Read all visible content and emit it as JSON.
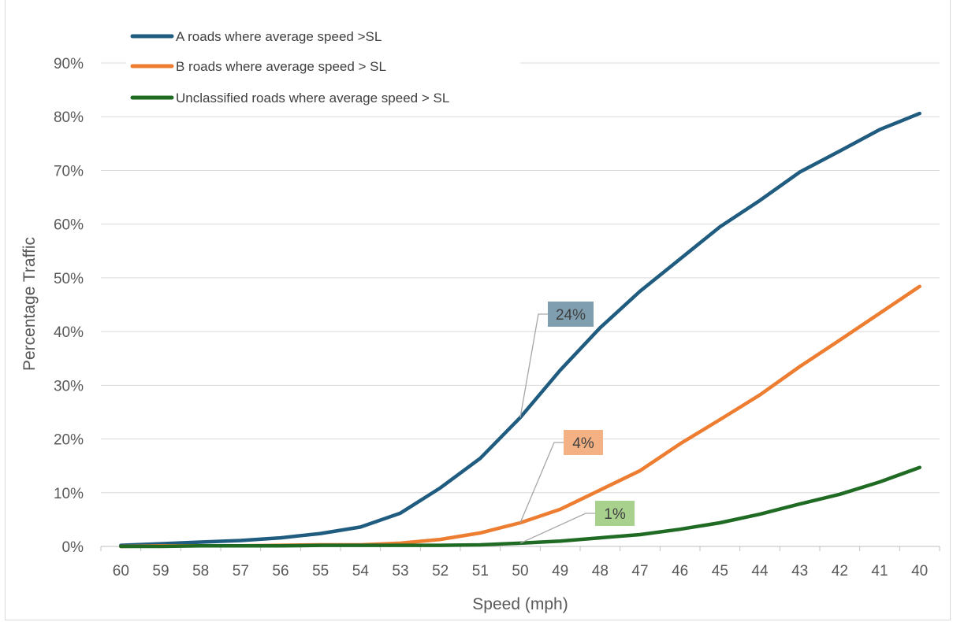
{
  "chart_data": {
    "type": "line",
    "xlabel": "Speed (mph)",
    "ylabel": "Percentage Traffic",
    "categories": [
      "60",
      "59",
      "58",
      "57",
      "56",
      "55",
      "54",
      "53",
      "52",
      "51",
      "50",
      "49",
      "48",
      "47",
      "46",
      "45",
      "44",
      "43",
      "42",
      "41",
      "40"
    ],
    "ylim": [
      0,
      90
    ],
    "yticks": [
      0,
      10,
      20,
      30,
      40,
      50,
      60,
      70,
      80,
      90
    ],
    "ytick_labels": [
      "0%",
      "10%",
      "20%",
      "30%",
      "40%",
      "50%",
      "60%",
      "70%",
      "80%",
      "90%"
    ],
    "grid": true,
    "legend_position": "top-left",
    "series": [
      {
        "name": "A roads where average speed >SL",
        "color": "#1f5c7f",
        "values": [
          0.2,
          0.5,
          0.8,
          1.1,
          1.6,
          2.4,
          3.6,
          6.2,
          10.9,
          16.4,
          24.0,
          32.8,
          40.7,
          47.5,
          53.5,
          59.5,
          64.4,
          69.7,
          73.6,
          77.6,
          80.6
        ]
      },
      {
        "name": "B roads where average speed > SL",
        "color": "#ed7d31",
        "values": [
          0.0,
          0.1,
          0.1,
          0.1,
          0.2,
          0.3,
          0.3,
          0.6,
          1.3,
          2.5,
          4.4,
          6.9,
          10.5,
          14.1,
          19.1,
          23.6,
          28.2,
          33.5,
          38.4,
          43.4,
          48.4
        ]
      },
      {
        "name": "Unclassified roads where average speed > SL",
        "color": "#1f6b23",
        "values": [
          0.0,
          0.0,
          0.1,
          0.1,
          0.1,
          0.2,
          0.2,
          0.2,
          0.2,
          0.3,
          0.6,
          1.0,
          1.6,
          2.2,
          3.2,
          4.4,
          6.0,
          7.9,
          9.7,
          12.0,
          14.7
        ]
      }
    ],
    "annotations": [
      {
        "text": "24%",
        "series": 0,
        "category": "50",
        "fill": "#7f9fb1"
      },
      {
        "text": "4%",
        "series": 1,
        "category": "50",
        "fill": "#f4b183"
      },
      {
        "text": "1%",
        "series": 2,
        "category": "50",
        "fill": "#a9d18e"
      }
    ]
  }
}
